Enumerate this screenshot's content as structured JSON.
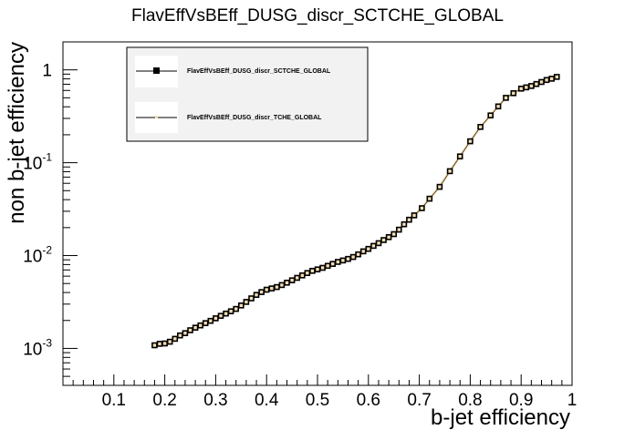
{
  "chart_data": {
    "type": "scatter",
    "title": "FlavEffVsBEff_DUSG_discr_SCTCHE_GLOBAL",
    "xlabel": "b-jet efficiency",
    "ylabel": "non b-jet efficiency",
    "xlim": [
      0,
      1
    ],
    "ylim": [
      0.0004,
      2
    ],
    "yscale": "log",
    "x_ticks": [
      "0.1",
      "0.2",
      "0.3",
      "0.4",
      "0.5",
      "0.6",
      "0.7",
      "0.8",
      "0.9",
      "1"
    ],
    "y_ticks": [
      {
        "value": 1,
        "base": "1",
        "exp": ""
      },
      {
        "value": 0.1,
        "base": "10",
        "exp": "-1"
      },
      {
        "value": 0.01,
        "base": "10",
        "exp": "-2"
      },
      {
        "value": 0.001,
        "base": "10",
        "exp": "-3"
      }
    ],
    "grid": false,
    "legend_position": "top-left",
    "series": [
      {
        "name": "FlavEffVsBEff_DUSG_discr_SCTCHE_GLOBAL",
        "color": "#000000",
        "marker": "open-square",
        "points": [
          [
            0.18,
            0.00108
          ],
          [
            0.19,
            0.00112
          ],
          [
            0.2,
            0.00113
          ],
          [
            0.21,
            0.00118
          ],
          [
            0.22,
            0.00127
          ],
          [
            0.23,
            0.00138
          ],
          [
            0.24,
            0.00146
          ],
          [
            0.25,
            0.00157
          ],
          [
            0.26,
            0.00167
          ],
          [
            0.27,
            0.00177
          ],
          [
            0.28,
            0.00187
          ],
          [
            0.29,
            0.00198
          ],
          [
            0.3,
            0.00211
          ],
          [
            0.31,
            0.00224
          ],
          [
            0.32,
            0.00237
          ],
          [
            0.33,
            0.00251
          ],
          [
            0.34,
            0.00266
          ],
          [
            0.35,
            0.0029
          ],
          [
            0.36,
            0.00317
          ],
          [
            0.37,
            0.00346
          ],
          [
            0.38,
            0.00377
          ],
          [
            0.39,
            0.00404
          ],
          [
            0.4,
            0.00429
          ],
          [
            0.41,
            0.00443
          ],
          [
            0.42,
            0.00458
          ],
          [
            0.43,
            0.00481
          ],
          [
            0.44,
            0.0051
          ],
          [
            0.45,
            0.00541
          ],
          [
            0.46,
            0.00575
          ],
          [
            0.47,
            0.00612
          ],
          [
            0.48,
            0.00649
          ],
          [
            0.49,
            0.00685
          ],
          [
            0.5,
            0.0071
          ],
          [
            0.51,
            0.00738
          ],
          [
            0.52,
            0.00775
          ],
          [
            0.53,
            0.00812
          ],
          [
            0.54,
            0.00855
          ],
          [
            0.55,
            0.00885
          ],
          [
            0.56,
            0.0092
          ],
          [
            0.57,
            0.00965
          ],
          [
            0.58,
            0.0103
          ],
          [
            0.59,
            0.0111
          ],
          [
            0.6,
            0.0118
          ],
          [
            0.61,
            0.0127
          ],
          [
            0.62,
            0.0136
          ],
          [
            0.63,
            0.0147
          ],
          [
            0.64,
            0.0158
          ],
          [
            0.65,
            0.017
          ],
          [
            0.66,
            0.019
          ],
          [
            0.67,
            0.0217
          ],
          [
            0.68,
            0.0243
          ],
          [
            0.69,
            0.0271
          ],
          [
            0.705,
            0.0324
          ],
          [
            0.72,
            0.041
          ],
          [
            0.74,
            0.055
          ],
          [
            0.76,
            0.081
          ],
          [
            0.78,
            0.117
          ],
          [
            0.8,
            0.17
          ],
          [
            0.82,
            0.243
          ],
          [
            0.84,
            0.323
          ],
          [
            0.855,
            0.404
          ],
          [
            0.87,
            0.5
          ],
          [
            0.885,
            0.56
          ],
          [
            0.9,
            0.627
          ],
          [
            0.91,
            0.648
          ],
          [
            0.92,
            0.67
          ],
          [
            0.93,
            0.704
          ],
          [
            0.94,
            0.74
          ],
          [
            0.95,
            0.777
          ],
          [
            0.96,
            0.803
          ],
          [
            0.97,
            0.84
          ]
        ]
      },
      {
        "name": "FlavEffVsBEff_DUSG_discr_TCHE_GLOBAL",
        "color": "#f5deb3",
        "marker": "line",
        "points": []
      }
    ]
  }
}
